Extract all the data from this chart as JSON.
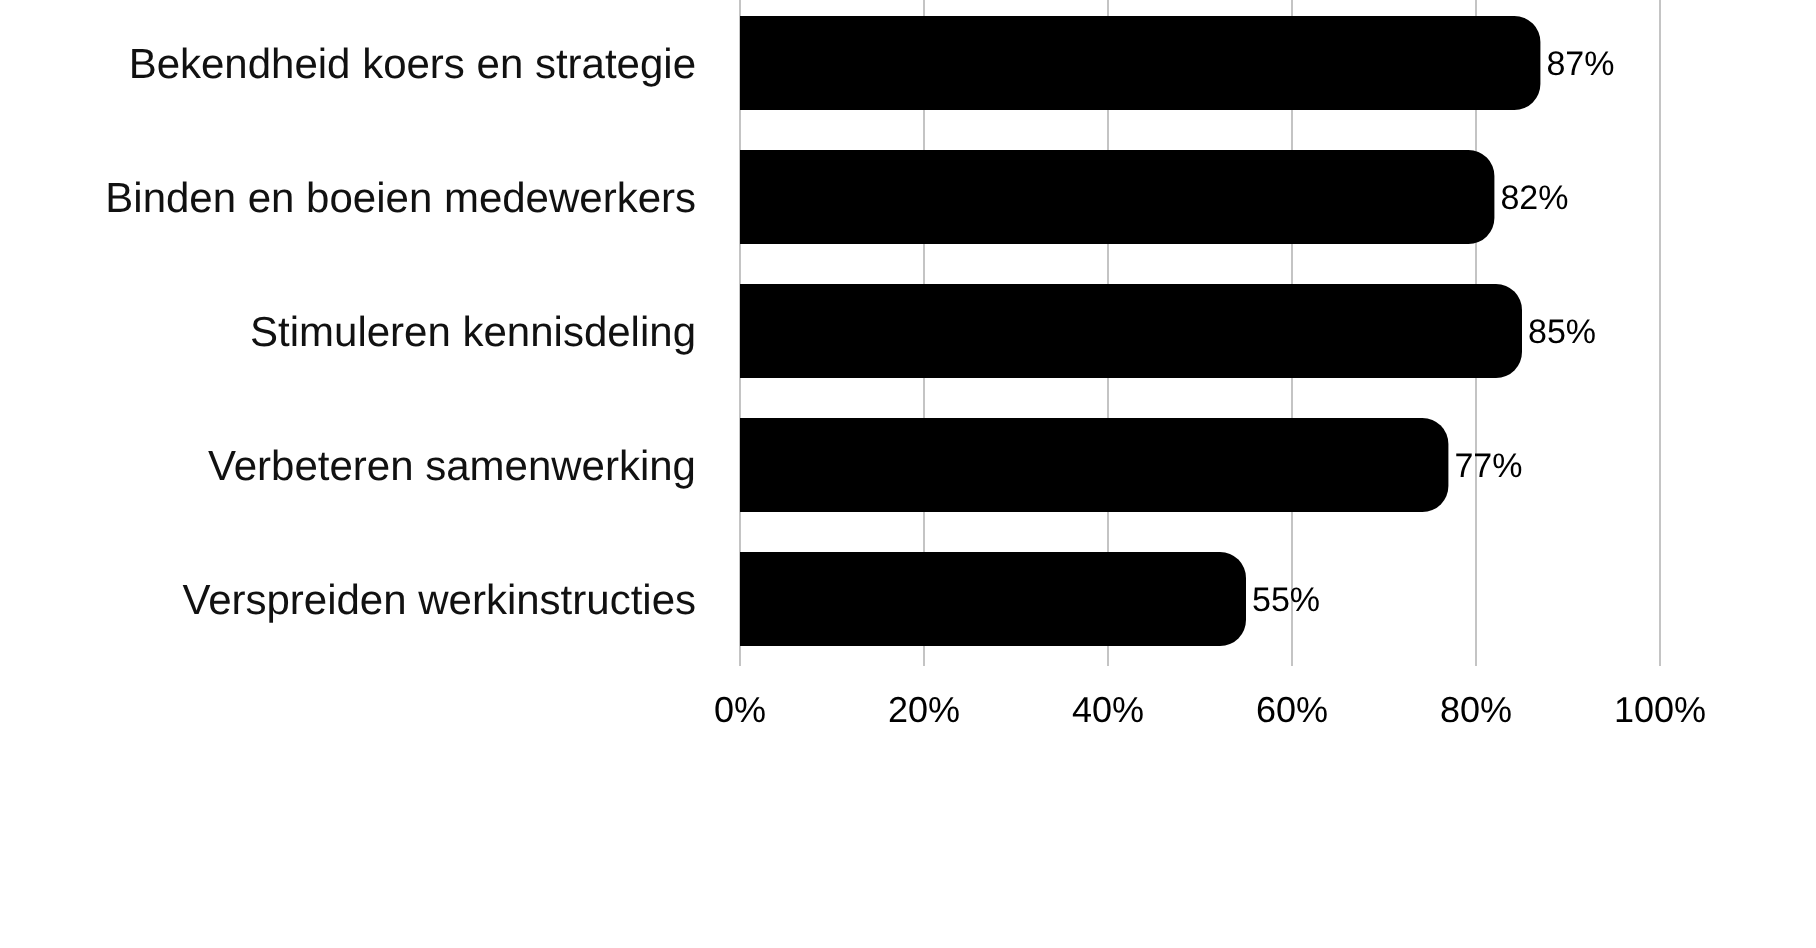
{
  "chart_data": {
    "type": "bar",
    "orientation": "horizontal",
    "categories": [
      "Bekendheid koers en strategie",
      "Binden en boeien medewerkers",
      "Stimuleren kennisdeling",
      "Verbeteren samenwerking",
      "Verspreiden werkinstructies"
    ],
    "values": [
      87,
      82,
      85,
      77,
      55
    ],
    "color": "#000000",
    "value_labels": [
      "87%",
      "82%",
      "85%",
      "77%",
      "55%"
    ],
    "xlim": [
      0,
      100
    ],
    "xticks": [
      {
        "value": 0,
        "label": "0%"
      },
      {
        "value": 20,
        "label": "20%"
      },
      {
        "value": 40,
        "label": "40%"
      },
      {
        "value": 60,
        "label": "60%"
      },
      {
        "value": 80,
        "label": "80%"
      },
      {
        "value": 100,
        "label": "100%"
      }
    ],
    "grid": "x"
  }
}
